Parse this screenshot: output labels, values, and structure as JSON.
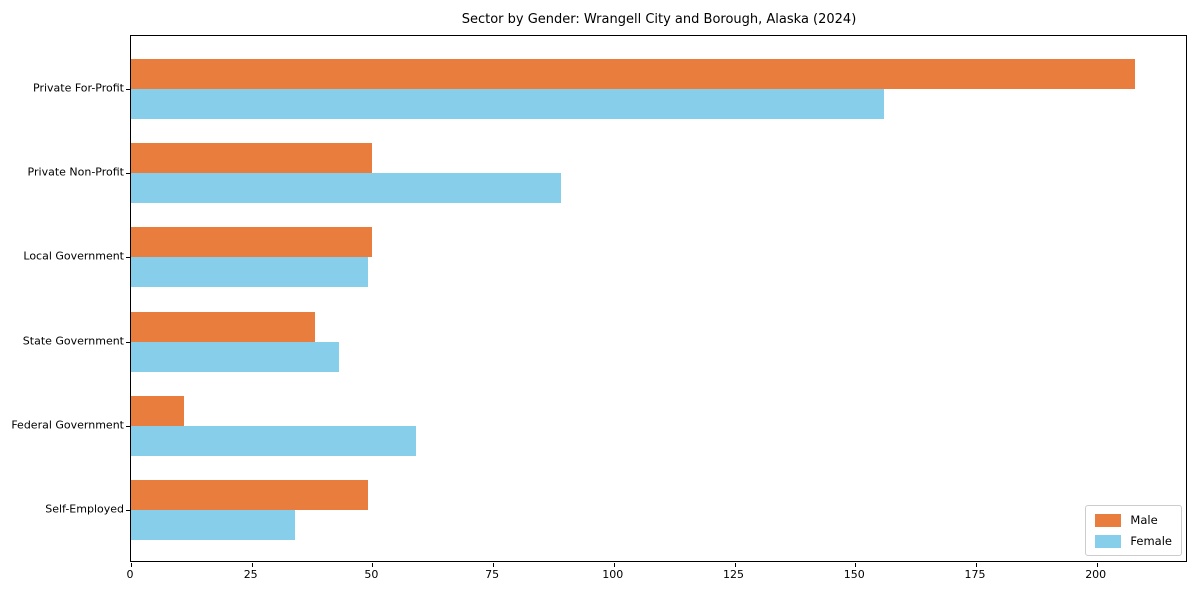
{
  "chart_data": {
    "type": "bar",
    "orientation": "horizontal",
    "title": "Sector by Gender: Wrangell City and Borough, Alaska (2024)",
    "categories": [
      "Private For-Profit",
      "Private Non-Profit",
      "Local Government",
      "State Government",
      "Federal Government",
      "Self-Employed"
    ],
    "series": [
      {
        "name": "Male",
        "color": "#e87d3e",
        "values": [
          208,
          50,
          50,
          38,
          11,
          49
        ]
      },
      {
        "name": "Female",
        "color": "#87ceeb",
        "values": [
          156,
          89,
          49,
          43,
          59,
          34
        ]
      }
    ],
    "xlabel": "",
    "ylabel": "",
    "xlim": [
      0,
      218.5
    ],
    "xticks": [
      0,
      25,
      50,
      75,
      100,
      125,
      150,
      175,
      200
    ],
    "grid": false,
    "legend_position": "lower right",
    "colors": {
      "axis": "#000000",
      "legend_border": "#cccccc",
      "background": "#ffffff"
    }
  }
}
